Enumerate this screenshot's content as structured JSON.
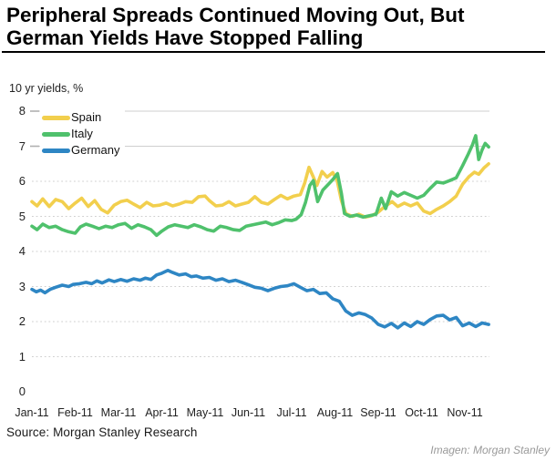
{
  "header": {
    "title_line1": "Peripheral Spreads Continued Moving Out, But",
    "title_line2": "German Yields Have Stopped Falling"
  },
  "footer": {
    "source": "Source:  Morgan Stanley Research",
    "credit": "Imagen: Morgan Stanley"
  },
  "chart_data": {
    "type": "line",
    "title": "",
    "axis_label": "10 yr yields, %",
    "xlabel": "",
    "ylabel": "",
    "ylim": [
      0,
      8
    ],
    "y_ticks": [
      0,
      1,
      2,
      3,
      4,
      5,
      6,
      7,
      8
    ],
    "x_tick_labels": [
      "Jan-11",
      "Feb-11",
      "Mar-11",
      "Apr-11",
      "May-11",
      "Jun-11",
      "Jul-11",
      "Aug-11",
      "Sep-11",
      "Oct-11",
      "Nov-11"
    ],
    "x_month_range": [
      0,
      10.55
    ],
    "grid": {
      "solid_lines_at": [
        7,
        8
      ],
      "dotted_lines_at": [
        1,
        2,
        3,
        4,
        5,
        6
      ]
    },
    "legend_position": "top-left",
    "gridline_color": "#cfcfcf",
    "tick_color": "#b0b0b0",
    "series": [
      {
        "name": "Spain",
        "color": "#F2CF4D",
        "points": [
          [
            0.0,
            5.42
          ],
          [
            0.12,
            5.3
          ],
          [
            0.25,
            5.5
          ],
          [
            0.4,
            5.28
          ],
          [
            0.55,
            5.48
          ],
          [
            0.7,
            5.42
          ],
          [
            0.85,
            5.22
          ],
          [
            1.0,
            5.38
          ],
          [
            1.15,
            5.52
          ],
          [
            1.3,
            5.28
          ],
          [
            1.45,
            5.45
          ],
          [
            1.6,
            5.2
          ],
          [
            1.75,
            5.1
          ],
          [
            1.9,
            5.32
          ],
          [
            2.05,
            5.42
          ],
          [
            2.2,
            5.46
          ],
          [
            2.35,
            5.35
          ],
          [
            2.5,
            5.25
          ],
          [
            2.65,
            5.4
          ],
          [
            2.8,
            5.3
          ],
          [
            2.95,
            5.32
          ],
          [
            3.1,
            5.38
          ],
          [
            3.25,
            5.3
          ],
          [
            3.4,
            5.35
          ],
          [
            3.55,
            5.42
          ],
          [
            3.7,
            5.4
          ],
          [
            3.85,
            5.56
          ],
          [
            4.0,
            5.58
          ],
          [
            4.1,
            5.45
          ],
          [
            4.25,
            5.3
          ],
          [
            4.4,
            5.32
          ],
          [
            4.55,
            5.42
          ],
          [
            4.7,
            5.3
          ],
          [
            4.85,
            5.35
          ],
          [
            5.0,
            5.4
          ],
          [
            5.15,
            5.56
          ],
          [
            5.3,
            5.4
          ],
          [
            5.45,
            5.35
          ],
          [
            5.6,
            5.48
          ],
          [
            5.75,
            5.6
          ],
          [
            5.9,
            5.5
          ],
          [
            6.05,
            5.58
          ],
          [
            6.2,
            5.62
          ],
          [
            6.3,
            5.95
          ],
          [
            6.4,
            6.4
          ],
          [
            6.5,
            6.12
          ],
          [
            6.58,
            5.88
          ],
          [
            6.7,
            6.28
          ],
          [
            6.82,
            6.12
          ],
          [
            6.95,
            6.25
          ],
          [
            7.05,
            6.02
          ],
          [
            7.15,
            5.45
          ],
          [
            7.25,
            5.08
          ],
          [
            7.4,
            5.0
          ],
          [
            7.55,
            5.06
          ],
          [
            7.7,
            4.98
          ],
          [
            7.85,
            5.02
          ],
          [
            8.0,
            5.12
          ],
          [
            8.15,
            5.28
          ],
          [
            8.32,
            5.42
          ],
          [
            8.45,
            5.28
          ],
          [
            8.6,
            5.38
          ],
          [
            8.75,
            5.3
          ],
          [
            8.9,
            5.38
          ],
          [
            9.05,
            5.15
          ],
          [
            9.2,
            5.08
          ],
          [
            9.35,
            5.2
          ],
          [
            9.5,
            5.3
          ],
          [
            9.65,
            5.42
          ],
          [
            9.8,
            5.58
          ],
          [
            9.95,
            5.92
          ],
          [
            10.1,
            6.14
          ],
          [
            10.22,
            6.26
          ],
          [
            10.32,
            6.2
          ],
          [
            10.44,
            6.38
          ],
          [
            10.55,
            6.5
          ]
        ]
      },
      {
        "name": "Italy",
        "color": "#4FC16C",
        "points": [
          [
            0.0,
            4.72
          ],
          [
            0.12,
            4.62
          ],
          [
            0.25,
            4.78
          ],
          [
            0.4,
            4.68
          ],
          [
            0.55,
            4.72
          ],
          [
            0.7,
            4.62
          ],
          [
            0.85,
            4.56
          ],
          [
            1.0,
            4.52
          ],
          [
            1.12,
            4.7
          ],
          [
            1.25,
            4.78
          ],
          [
            1.4,
            4.72
          ],
          [
            1.55,
            4.65
          ],
          [
            1.7,
            4.72
          ],
          [
            1.85,
            4.68
          ],
          [
            2.0,
            4.76
          ],
          [
            2.15,
            4.8
          ],
          [
            2.3,
            4.66
          ],
          [
            2.45,
            4.76
          ],
          [
            2.6,
            4.7
          ],
          [
            2.75,
            4.62
          ],
          [
            2.88,
            4.46
          ],
          [
            3.0,
            4.58
          ],
          [
            3.15,
            4.7
          ],
          [
            3.3,
            4.76
          ],
          [
            3.45,
            4.72
          ],
          [
            3.6,
            4.68
          ],
          [
            3.75,
            4.76
          ],
          [
            3.9,
            4.7
          ],
          [
            4.05,
            4.62
          ],
          [
            4.2,
            4.58
          ],
          [
            4.35,
            4.72
          ],
          [
            4.5,
            4.68
          ],
          [
            4.65,
            4.62
          ],
          [
            4.8,
            4.6
          ],
          [
            4.95,
            4.72
          ],
          [
            5.1,
            4.76
          ],
          [
            5.25,
            4.8
          ],
          [
            5.4,
            4.84
          ],
          [
            5.55,
            4.76
          ],
          [
            5.7,
            4.82
          ],
          [
            5.85,
            4.9
          ],
          [
            6.0,
            4.88
          ],
          [
            6.1,
            4.92
          ],
          [
            6.22,
            5.05
          ],
          [
            6.32,
            5.4
          ],
          [
            6.42,
            5.88
          ],
          [
            6.5,
            6.02
          ],
          [
            6.6,
            5.42
          ],
          [
            6.72,
            5.75
          ],
          [
            6.85,
            5.92
          ],
          [
            6.95,
            6.05
          ],
          [
            7.06,
            6.22
          ],
          [
            7.15,
            5.65
          ],
          [
            7.22,
            5.08
          ],
          [
            7.35,
            5.0
          ],
          [
            7.5,
            5.04
          ],
          [
            7.65,
            4.98
          ],
          [
            7.8,
            5.02
          ],
          [
            7.95,
            5.06
          ],
          [
            8.07,
            5.52
          ],
          [
            8.17,
            5.22
          ],
          [
            8.3,
            5.7
          ],
          [
            8.45,
            5.58
          ],
          [
            8.6,
            5.68
          ],
          [
            8.75,
            5.6
          ],
          [
            8.9,
            5.52
          ],
          [
            9.05,
            5.6
          ],
          [
            9.2,
            5.8
          ],
          [
            9.35,
            5.98
          ],
          [
            9.5,
            5.95
          ],
          [
            9.65,
            6.02
          ],
          [
            9.8,
            6.1
          ],
          [
            9.95,
            6.45
          ],
          [
            10.08,
            6.78
          ],
          [
            10.18,
            7.05
          ],
          [
            10.25,
            7.3
          ],
          [
            10.32,
            6.62
          ],
          [
            10.4,
            6.9
          ],
          [
            10.47,
            7.08
          ],
          [
            10.55,
            6.98
          ]
        ]
      },
      {
        "name": "Germany",
        "color": "#2E86C4",
        "points": [
          [
            0.0,
            2.92
          ],
          [
            0.1,
            2.85
          ],
          [
            0.2,
            2.9
          ],
          [
            0.3,
            2.82
          ],
          [
            0.42,
            2.92
          ],
          [
            0.55,
            2.98
          ],
          [
            0.7,
            3.04
          ],
          [
            0.85,
            3.0
          ],
          [
            0.95,
            3.06
          ],
          [
            1.1,
            3.08
          ],
          [
            1.25,
            3.12
          ],
          [
            1.38,
            3.08
          ],
          [
            1.5,
            3.16
          ],
          [
            1.62,
            3.1
          ],
          [
            1.78,
            3.19
          ],
          [
            1.9,
            3.14
          ],
          [
            2.05,
            3.2
          ],
          [
            2.2,
            3.15
          ],
          [
            2.35,
            3.22
          ],
          [
            2.5,
            3.18
          ],
          [
            2.62,
            3.24
          ],
          [
            2.75,
            3.2
          ],
          [
            2.88,
            3.33
          ],
          [
            3.0,
            3.38
          ],
          [
            3.14,
            3.46
          ],
          [
            3.25,
            3.4
          ],
          [
            3.4,
            3.33
          ],
          [
            3.55,
            3.36
          ],
          [
            3.68,
            3.28
          ],
          [
            3.8,
            3.3
          ],
          [
            3.95,
            3.24
          ],
          [
            4.1,
            3.26
          ],
          [
            4.25,
            3.18
          ],
          [
            4.4,
            3.22
          ],
          [
            4.55,
            3.14
          ],
          [
            4.7,
            3.18
          ],
          [
            4.85,
            3.12
          ],
          [
            5.0,
            3.05
          ],
          [
            5.15,
            2.98
          ],
          [
            5.3,
            2.95
          ],
          [
            5.45,
            2.88
          ],
          [
            5.6,
            2.95
          ],
          [
            5.75,
            3.0
          ],
          [
            5.9,
            3.02
          ],
          [
            6.05,
            3.08
          ],
          [
            6.2,
            2.98
          ],
          [
            6.35,
            2.88
          ],
          [
            6.5,
            2.92
          ],
          [
            6.65,
            2.8
          ],
          [
            6.8,
            2.82
          ],
          [
            6.95,
            2.65
          ],
          [
            7.1,
            2.58
          ],
          [
            7.25,
            2.3
          ],
          [
            7.4,
            2.18
          ],
          [
            7.55,
            2.25
          ],
          [
            7.7,
            2.2
          ],
          [
            7.85,
            2.1
          ],
          [
            8.0,
            1.92
          ],
          [
            8.15,
            1.85
          ],
          [
            8.3,
            1.95
          ],
          [
            8.45,
            1.82
          ],
          [
            8.6,
            1.96
          ],
          [
            8.75,
            1.86
          ],
          [
            8.9,
            2.0
          ],
          [
            9.05,
            1.92
          ],
          [
            9.2,
            2.06
          ],
          [
            9.35,
            2.16
          ],
          [
            9.5,
            2.18
          ],
          [
            9.65,
            2.05
          ],
          [
            9.8,
            2.12
          ],
          [
            9.95,
            1.88
          ],
          [
            10.1,
            1.96
          ],
          [
            10.25,
            1.86
          ],
          [
            10.4,
            1.96
          ],
          [
            10.55,
            1.92
          ]
        ]
      }
    ]
  }
}
